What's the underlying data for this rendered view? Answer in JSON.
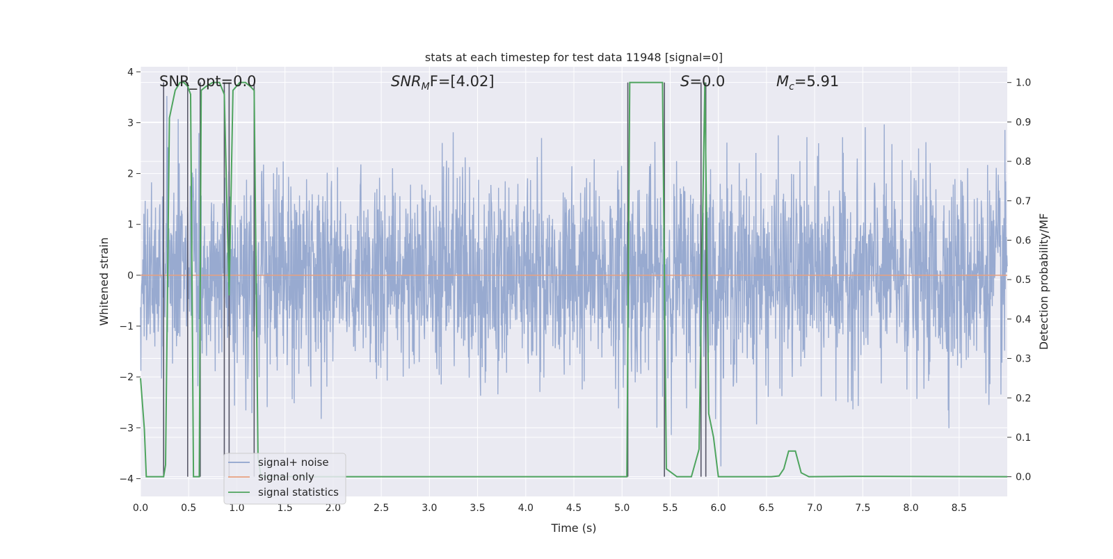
{
  "chart_data": {
    "type": "line",
    "title": "stats at each timestep for test data 11948 [signal=0]",
    "xlabel": "Time (s)",
    "ylabel": "Whitened strain",
    "y2label": "Detection probability/MF",
    "xlim": [
      0.0,
      9.0
    ],
    "ylim": [
      -4.35,
      4.1
    ],
    "y2lim": [
      -0.05,
      1.04
    ],
    "xticks": [
      0.0,
      0.5,
      1.0,
      1.5,
      2.0,
      2.5,
      3.0,
      3.5,
      4.0,
      4.5,
      5.0,
      5.5,
      6.0,
      6.5,
      7.0,
      7.5,
      8.0,
      8.5
    ],
    "xtick_labels": [
      "0.0",
      "0.5",
      "1.0",
      "1.5",
      "2.0",
      "2.5",
      "3.0",
      "3.5",
      "4.0",
      "4.5",
      "5.0",
      "5.5",
      "6.0",
      "6.5",
      "7.0",
      "7.5",
      "8.0",
      "8.5"
    ],
    "yticks": [
      -4,
      -3,
      -2,
      -1,
      0,
      1,
      2,
      3,
      4
    ],
    "ytick_labels": [
      "−4",
      "−3",
      "−2",
      "−1",
      "0",
      "1",
      "2",
      "3",
      "4"
    ],
    "y2ticks": [
      0.0,
      0.1,
      0.2,
      0.3,
      0.4,
      0.5,
      0.6,
      0.7,
      0.8,
      0.9,
      1.0
    ],
    "y2tick_labels": [
      "0.0",
      "0.1",
      "0.2",
      "0.3",
      "0.4",
      "0.5",
      "0.6",
      "0.7",
      "0.8",
      "0.9",
      "1.0"
    ],
    "legend": [
      "signal+ noise",
      "signal only",
      "signal statistics"
    ],
    "legend_position": "lower-left",
    "annotations": {
      "snr_opt": "SNR_opt=0.0",
      "snr_mf_sym": "SNR",
      "snr_mf_sub": "M",
      "snr_mf_rest": "F=[4.02]",
      "s_sym": "S",
      "s_rest": "=0.0",
      "mc_sym": "M",
      "mc_sub": "c",
      "mc_rest": "=5.91"
    },
    "series": [
      {
        "name": "signal+ noise",
        "kind": "noise",
        "color": "#8fa3cc",
        "note": "whitened strain noise, approx. gaussian with sigma ~1, spikes up to ~3.5 and down to ~-4"
      },
      {
        "name": "signal only",
        "color": "#e8a07f",
        "x": [
          0.0,
          9.0
        ],
        "y": [
          0.0,
          0.0
        ]
      },
      {
        "name": "signal statistics",
        "color": "#4ea45e",
        "axis": "right",
        "x": [
          0.0,
          0.04,
          0.06,
          0.24,
          0.26,
          0.3,
          0.36,
          0.41,
          0.45,
          0.49,
          0.52,
          0.55,
          0.61,
          0.63,
          0.68,
          0.75,
          0.82,
          0.87,
          0.92,
          0.96,
          1.03,
          1.09,
          1.14,
          1.18,
          1.22,
          1.25,
          5.05,
          5.08,
          5.13,
          5.4,
          5.42,
          5.46,
          5.57,
          5.62,
          5.72,
          5.8,
          5.83,
          5.86,
          5.88,
          5.9,
          5.95,
          6.0,
          6.55,
          6.63,
          6.68,
          6.73,
          6.8,
          6.86,
          6.94,
          7.4,
          7.5,
          9.0
        ],
        "y": [
          0.25,
          0.12,
          0.0,
          0.0,
          0.03,
          0.91,
          0.98,
          1.0,
          1.0,
          0.99,
          0.97,
          0.0,
          0.0,
          0.98,
          0.99,
          1.0,
          1.0,
          0.97,
          0.46,
          0.98,
          1.0,
          1.0,
          0.99,
          0.98,
          0.05,
          0.0,
          0.0,
          1.0,
          1.0,
          1.0,
          1.0,
          0.02,
          0.0,
          0.0,
          0.0,
          0.07,
          0.55,
          1.0,
          0.6,
          0.16,
          0.1,
          0.0,
          0.0,
          0.002,
          0.02,
          0.065,
          0.065,
          0.01,
          0.0,
          0.001,
          0.001,
          0.0
        ]
      }
    ],
    "event_markers_x": [
      0.24,
      0.49,
      0.62,
      0.87,
      0.92,
      1.18,
      5.06,
      5.44,
      5.82,
      5.87
    ]
  }
}
